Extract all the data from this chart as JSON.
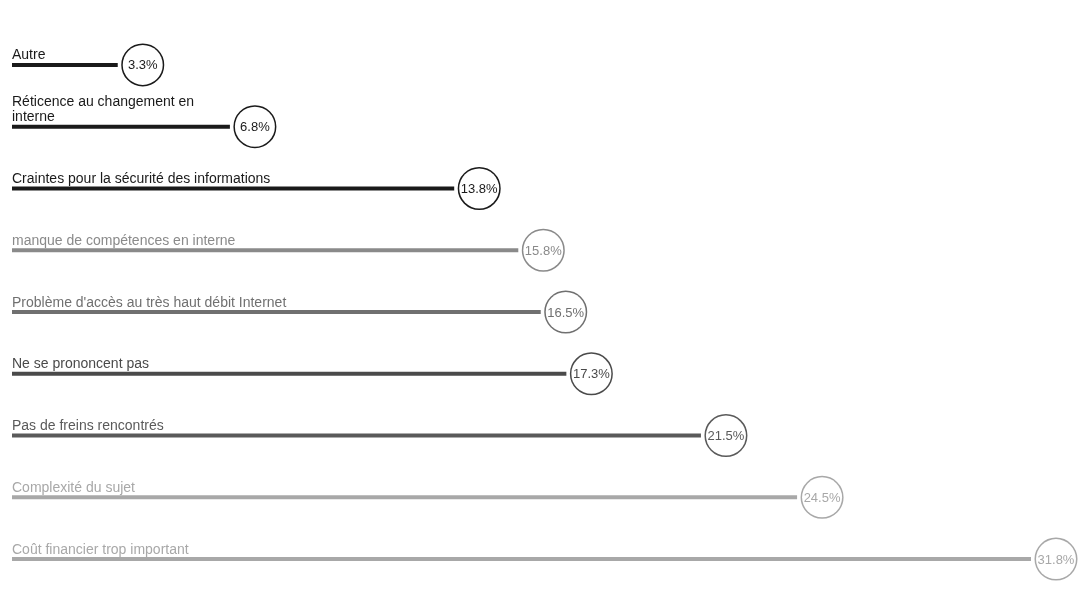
{
  "chart_data": {
    "type": "bar",
    "orientation": "horizontal",
    "categories": [
      "Autre",
      "Réticence au changement en interne",
      "Craintes pour la sécurité des informations",
      "manque de compétences en interne",
      "Problème d'accès au très haut débit Internet",
      "Ne se prononcent pas",
      "Pas de freins rencontrés",
      "Complexité du sujet",
      "Coût financier trop important"
    ],
    "values": [
      3.3,
      6.8,
      13.8,
      15.8,
      16.5,
      17.3,
      21.5,
      24.5,
      31.8
    ],
    "value_labels": [
      "3.3%",
      "6.8%",
      "13.8%",
      "15.8%",
      "16.5%",
      "17.3%",
      "21.5%",
      "24.5%",
      "31.8%"
    ],
    "colors": [
      "#1a1a1a",
      "#1a1a1a",
      "#1a1a1a",
      "#8a8a8a",
      "#707070",
      "#4a4a4a",
      "#5a5a5a",
      "#a8a8a8",
      "#a8a8a8"
    ],
    "tick_labels": "y"
  }
}
